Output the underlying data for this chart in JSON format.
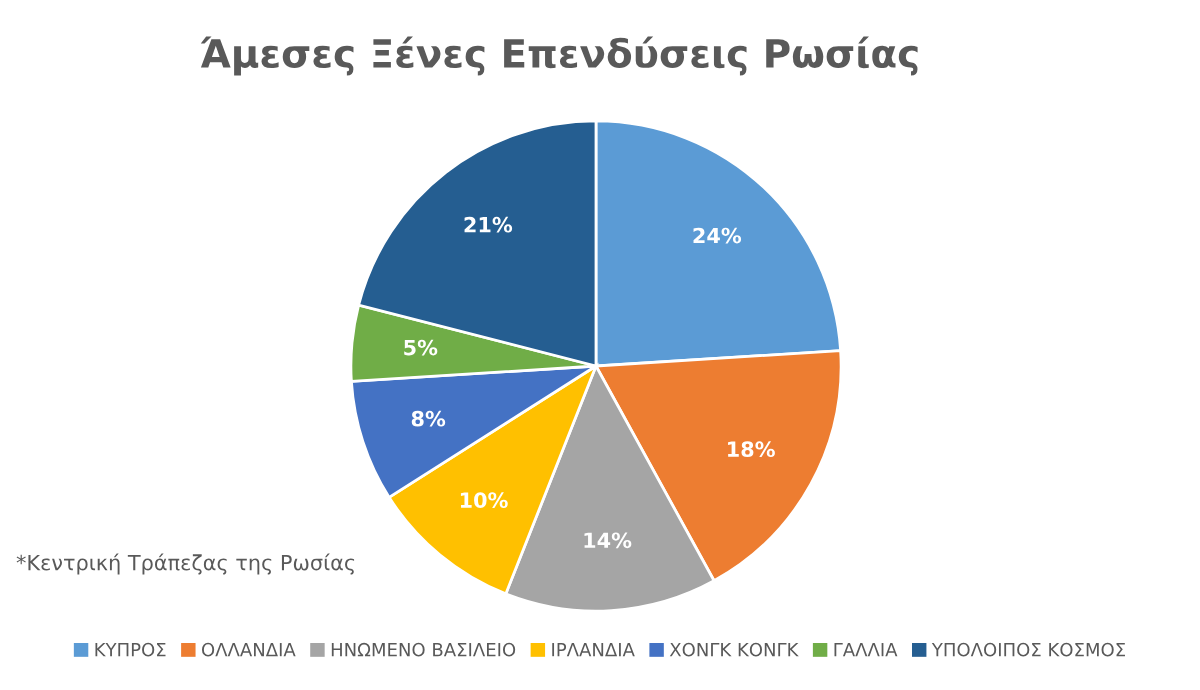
{
  "chart_data": {
    "type": "pie",
    "title": "Άμεσες Ξένες Επενδύσεις Ρωσίας",
    "categories": [
      "ΚΥΠΡΟΣ",
      "ΟΛΛΑΝΔΙΑ",
      "ΗΝΩΜΕΝΟ ΒΑΣΙΛΕΙΟ",
      "ΙΡΛΑΝΔΙΑ",
      "ΧΟΝΓΚ ΚΟΝΓΚ",
      "ΓΑΛΛΙΑ",
      "ΥΠΟΛΟΙΠΟΣ ΚΟΣΜΟΣ"
    ],
    "values": [
      24,
      18,
      14,
      10,
      8,
      5,
      21
    ],
    "colors": [
      "#5b9bd5",
      "#ed7d31",
      "#a5a5a5",
      "#ffc000",
      "#4472c4",
      "#70ad47",
      "#255e91"
    ],
    "value_labels": [
      "24%",
      "18%",
      "14%",
      "10%",
      "8%",
      "5%",
      "21%"
    ],
    "annotations": [
      "*Κεντρική Τράπεζας της Ρωσίας"
    ],
    "legend": "bottom"
  }
}
